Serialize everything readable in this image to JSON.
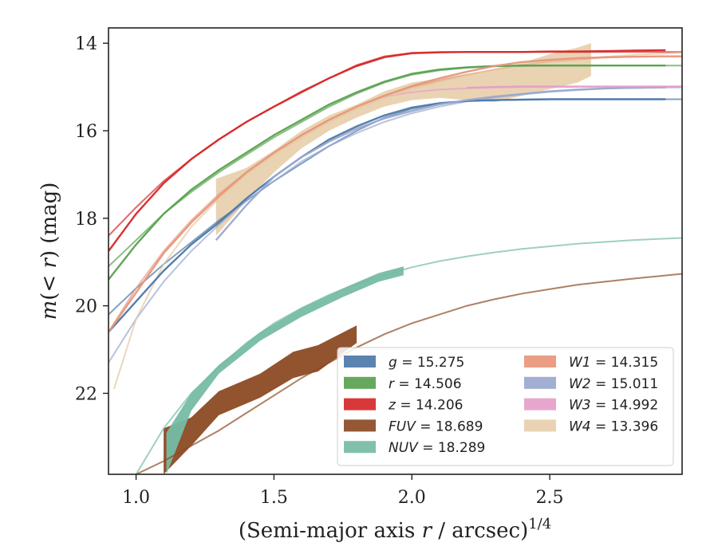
{
  "chart_data": {
    "type": "line",
    "xlabel_prefix": "(Semi-major axis ",
    "xlabel_var": "r",
    "xlabel_suffix": " / arcsec)",
    "xlabel_sup": "1/4",
    "ylabel_m": "m",
    "ylabel_mid": "(< ",
    "ylabel_r": "r",
    "ylabel_close": ")",
    "ylabel_unit": " (mag)",
    "xlim": [
      0.9,
      2.98
    ],
    "ylim": [
      23.85,
      13.65
    ],
    "xticks": [
      1.0,
      1.5,
      2.0,
      2.5
    ],
    "xtick_labels": [
      "1.0",
      "1.5",
      "2.0",
      "2.5"
    ],
    "yticks": [
      14,
      16,
      18,
      20,
      22
    ],
    "ytick_labels": [
      "14",
      "16",
      "18",
      "20",
      "22"
    ],
    "grid": false,
    "legend_position": "lower-right",
    "series": [
      {
        "name": "g",
        "label_value": "15.275",
        "color": "#4c78a8",
        "total": 15.275,
        "fit_x": [
          0.9,
          1.0,
          1.1,
          1.2,
          1.3,
          1.4,
          1.5,
          1.6,
          1.7,
          1.8,
          1.9,
          2.0,
          2.1,
          2.2,
          2.3,
          2.4,
          2.5,
          2.6,
          2.7,
          2.8,
          2.9,
          2.98
        ],
        "fit_y": [
          20.2,
          19.6,
          19.05,
          18.55,
          18.05,
          17.6,
          17.15,
          16.75,
          16.35,
          16.0,
          15.7,
          15.5,
          15.38,
          15.32,
          15.3,
          15.29,
          15.28,
          15.28,
          15.28,
          15.28,
          15.28,
          15.28
        ],
        "data_x": [
          0.9,
          1.0,
          1.1,
          1.2,
          1.3,
          1.4,
          1.5,
          1.6,
          1.7,
          1.8,
          1.9,
          2.0,
          2.1,
          2.2,
          2.3,
          2.4,
          2.5,
          2.6,
          2.7,
          2.8,
          2.92
        ],
        "data_y": [
          20.6,
          19.9,
          19.2,
          18.6,
          18.1,
          17.55,
          17.05,
          16.6,
          16.2,
          15.9,
          15.65,
          15.47,
          15.37,
          15.32,
          15.3,
          15.29,
          15.28,
          15.28,
          15.28,
          15.28,
          15.28
        ]
      },
      {
        "name": "r",
        "label_value": "14.506",
        "color": "#59a14f",
        "total": 14.506,
        "fit_x": [
          0.9,
          1.0,
          1.1,
          1.2,
          1.3,
          1.4,
          1.5,
          1.6,
          1.7,
          1.8,
          1.9,
          2.0,
          2.1,
          2.2,
          2.3,
          2.4,
          2.5,
          2.6,
          2.7,
          2.8,
          2.9,
          2.98
        ],
        "fit_y": [
          19.1,
          18.5,
          17.9,
          17.4,
          16.95,
          16.55,
          16.15,
          15.8,
          15.45,
          15.15,
          14.9,
          14.72,
          14.62,
          14.56,
          14.53,
          14.52,
          14.51,
          14.51,
          14.51,
          14.51,
          14.51,
          14.51
        ],
        "data_x": [
          0.9,
          1.0,
          1.1,
          1.2,
          1.3,
          1.4,
          1.5,
          1.6,
          1.7,
          1.8,
          1.9,
          2.0,
          2.1,
          2.2,
          2.3,
          2.4,
          2.5,
          2.6,
          2.7,
          2.8,
          2.92
        ],
        "data_y": [
          19.4,
          18.6,
          17.9,
          17.35,
          16.9,
          16.5,
          16.1,
          15.75,
          15.4,
          15.12,
          14.88,
          14.7,
          14.6,
          14.55,
          14.52,
          14.51,
          14.51,
          14.51,
          14.51,
          14.51,
          14.51
        ]
      },
      {
        "name": "z",
        "label_value": "14.206",
        "color": "#d62728",
        "total": 14.206,
        "fit_x": [
          0.9,
          1.0,
          1.1,
          1.2,
          1.3,
          1.4,
          1.5,
          1.6,
          1.7,
          1.8,
          1.9,
          2.0,
          2.1,
          2.2,
          2.3,
          2.4,
          2.5,
          2.6,
          2.7,
          2.8,
          2.9,
          2.98
        ],
        "fit_y": [
          18.4,
          17.75,
          17.15,
          16.65,
          16.2,
          15.8,
          15.45,
          15.1,
          14.8,
          14.5,
          14.3,
          14.22,
          14.2,
          14.2,
          14.2,
          14.2,
          14.2,
          14.2,
          14.2,
          14.2,
          14.2,
          14.2
        ],
        "data_x": [
          0.9,
          1.0,
          1.1,
          1.2,
          1.3,
          1.4,
          1.5,
          1.6,
          1.7,
          1.8,
          1.9,
          2.0,
          2.1,
          2.2,
          2.3,
          2.4,
          2.5,
          2.6,
          2.7,
          2.8,
          2.92
        ],
        "data_y": [
          18.75,
          17.9,
          17.2,
          16.65,
          16.2,
          15.8,
          15.45,
          15.12,
          14.8,
          14.52,
          14.32,
          14.23,
          14.21,
          14.2,
          14.2,
          14.2,
          14.19,
          14.19,
          14.18,
          14.17,
          14.16
        ]
      },
      {
        "name": "FUV",
        "label_value": "18.689",
        "color": "#8c4a24",
        "total": 18.689,
        "fit_x": [
          1.0,
          1.1,
          1.2,
          1.3,
          1.4,
          1.5,
          1.6,
          1.7,
          1.8,
          1.9,
          2.0,
          2.1,
          2.2,
          2.3,
          2.4,
          2.5,
          2.6,
          2.7,
          2.8,
          2.9,
          2.98
        ],
        "fit_y": [
          23.85,
          23.55,
          23.2,
          22.85,
          22.45,
          22.05,
          21.65,
          21.3,
          20.95,
          20.65,
          20.4,
          20.2,
          20.0,
          19.85,
          19.72,
          19.62,
          19.52,
          19.45,
          19.38,
          19.32,
          19.27
        ],
        "band_x": [
          1.1,
          1.2,
          1.3,
          1.45,
          1.57,
          1.66,
          1.8
        ],
        "band_lo": [
          23.85,
          23.2,
          22.5,
          22.1,
          21.65,
          21.5,
          20.85
        ],
        "band_hi": [
          22.8,
          22.55,
          21.95,
          21.55,
          21.05,
          20.9,
          20.45
        ]
      },
      {
        "name": "NUV",
        "label_value": "18.289",
        "color": "#76bca4",
        "total": 18.289,
        "fit_x": [
          1.0,
          1.1,
          1.2,
          1.3,
          1.4,
          1.5,
          1.6,
          1.7,
          1.8,
          1.9,
          2.0,
          2.1,
          2.2,
          2.3,
          2.4,
          2.5,
          2.6,
          2.7,
          2.8,
          2.9,
          2.98
        ],
        "fit_y": [
          23.85,
          22.8,
          22.0,
          21.4,
          20.85,
          20.4,
          20.05,
          19.75,
          19.5,
          19.3,
          19.12,
          18.98,
          18.87,
          18.78,
          18.7,
          18.64,
          18.58,
          18.54,
          18.5,
          18.47,
          18.45
        ],
        "band_x": [
          1.11,
          1.2,
          1.3,
          1.45,
          1.6,
          1.75,
          1.88,
          1.97
        ],
        "band_lo": [
          23.85,
          22.4,
          21.55,
          20.8,
          20.25,
          19.8,
          19.45,
          19.3
        ],
        "band_hi": [
          22.9,
          22.0,
          21.35,
          20.6,
          20.05,
          19.6,
          19.25,
          19.1
        ]
      },
      {
        "name": "W1",
        "label_value": "14.315",
        "color": "#e8967a",
        "total": 14.315,
        "fit_x": [
          0.9,
          1.0,
          1.1,
          1.2,
          1.3,
          1.4,
          1.5,
          1.6,
          1.7,
          1.8,
          1.9,
          2.0,
          2.1,
          2.2,
          2.3,
          2.4,
          2.5,
          2.6,
          2.7,
          2.8,
          2.9,
          2.98
        ],
        "fit_y": [
          20.6,
          19.6,
          18.75,
          18.05,
          17.45,
          16.95,
          16.5,
          16.1,
          15.75,
          15.45,
          15.2,
          15.0,
          14.85,
          14.72,
          14.6,
          14.5,
          14.42,
          14.37,
          14.33,
          14.31,
          14.3,
          14.3
        ],
        "data_x": [
          0.9,
          1.0,
          1.1,
          1.2,
          1.3,
          1.4,
          1.5,
          1.6,
          1.7,
          1.8,
          1.9,
          2.0,
          2.1,
          2.2,
          2.3,
          2.4,
          2.5,
          2.6,
          2.7,
          2.8,
          2.9,
          2.98
        ],
        "data_y": [
          20.6,
          19.7,
          18.8,
          18.1,
          17.5,
          16.95,
          16.5,
          16.1,
          15.75,
          15.45,
          15.2,
          14.98,
          14.8,
          14.65,
          14.52,
          14.43,
          14.38,
          14.34,
          14.32,
          14.31,
          14.3,
          14.3
        ]
      },
      {
        "name": "W2",
        "label_value": "15.011",
        "color": "#9aa8cf",
        "total": 15.011,
        "fit_x": [
          0.9,
          1.0,
          1.1,
          1.2,
          1.3,
          1.4,
          1.5,
          1.6,
          1.7,
          1.8,
          1.9,
          2.0,
          2.1,
          2.2,
          2.3,
          2.4,
          2.5,
          2.6,
          2.7,
          2.8,
          2.9,
          2.98
        ],
        "fit_y": [
          21.3,
          20.3,
          19.45,
          18.75,
          18.15,
          17.6,
          17.15,
          16.7,
          16.35,
          16.05,
          15.8,
          15.6,
          15.45,
          15.33,
          15.24,
          15.17,
          15.11,
          15.07,
          15.04,
          15.02,
          15.01,
          15.01
        ],
        "data_x": [
          1.29,
          1.4,
          1.5,
          1.6,
          1.7,
          1.8,
          1.9,
          2.0,
          2.1,
          2.2,
          2.3,
          2.4,
          2.5,
          2.6,
          2.7,
          2.8,
          2.92
        ],
        "data_y": [
          18.5,
          17.7,
          17.05,
          16.6,
          16.25,
          15.95,
          15.72,
          15.55,
          15.4,
          15.3,
          15.22,
          15.16,
          15.1,
          15.06,
          15.03,
          15.02,
          15.01
        ]
      },
      {
        "name": "W3",
        "label_value": "14.992",
        "color": "#e59fc9",
        "total": 14.992,
        "fit_x": [
          1.9,
          2.0,
          2.1,
          2.2,
          2.3,
          2.4,
          2.5,
          2.6,
          2.7,
          2.8,
          2.9,
          2.98
        ],
        "fit_y": [
          15.22,
          15.12,
          15.06,
          15.03,
          15.01,
          15.0,
          15.0,
          15.0,
          14.99,
          14.99,
          14.99,
          14.99
        ],
        "data_x": [
          2.2,
          2.3,
          2.4,
          2.5,
          2.6,
          2.7,
          2.8,
          2.9,
          2.98
        ],
        "data_y": [
          15.02,
          15.0,
          14.99,
          14.99,
          14.99,
          14.99,
          14.99,
          14.99,
          14.99
        ]
      },
      {
        "name": "W4",
        "label_value": "13.396",
        "color": "#e3c8a0",
        "total": 13.396,
        "fit_x": [
          0.92,
          1.0,
          1.1,
          1.2,
          1.3,
          1.4,
          1.5,
          1.6,
          1.7,
          1.8,
          1.9,
          2.0,
          2.1,
          2.2,
          2.3,
          2.4,
          2.5,
          2.6,
          2.7,
          2.8,
          2.9,
          2.98
        ],
        "fit_y": [
          21.9,
          20.3,
          19.05,
          18.2,
          17.55,
          17.0,
          16.55,
          16.15,
          15.8,
          15.5,
          15.25,
          15.05,
          14.88,
          14.73,
          14.6,
          14.5,
          14.42,
          14.36,
          14.31,
          14.27,
          14.24,
          14.22
        ],
        "band_x": [
          1.29,
          1.4,
          1.5,
          1.6,
          1.7,
          1.8,
          1.9,
          2.0,
          2.1,
          2.2,
          2.3,
          2.4,
          2.5,
          2.6,
          2.65
        ],
        "band_lo": [
          18.4,
          17.6,
          16.95,
          16.4,
          16.0,
          15.7,
          15.45,
          15.3,
          15.25,
          15.3,
          15.35,
          15.2,
          15.05,
          14.9,
          14.75
        ],
        "band_hi": [
          17.1,
          16.85,
          16.45,
          16.0,
          15.65,
          15.4,
          15.1,
          14.9,
          14.8,
          14.7,
          14.6,
          14.45,
          14.25,
          14.1,
          14.0
        ]
      }
    ]
  },
  "legend": {
    "left": [
      {
        "italic": "g",
        "value": "15.275",
        "color": "#4c78a8"
      },
      {
        "italic": "r",
        "value": "14.506",
        "color": "#59a14f"
      },
      {
        "italic": "z",
        "value": "14.206",
        "color": "#d62728"
      },
      {
        "italic": "FUV",
        "value": "18.689",
        "color": "#8c4a24"
      },
      {
        "italic": "NUV",
        "value": "18.289",
        "color": "#76bca4"
      }
    ],
    "right": [
      {
        "italic": "W1",
        "value": "14.315",
        "color": "#e8967a"
      },
      {
        "italic": "W2",
        "value": "15.011",
        "color": "#9aa8cf"
      },
      {
        "italic": "W3",
        "value": "14.992",
        "color": "#e59fc9"
      },
      {
        "italic": "W4",
        "value": "13.396",
        "color": "#e3c8a0"
      }
    ],
    "eq": " = "
  }
}
